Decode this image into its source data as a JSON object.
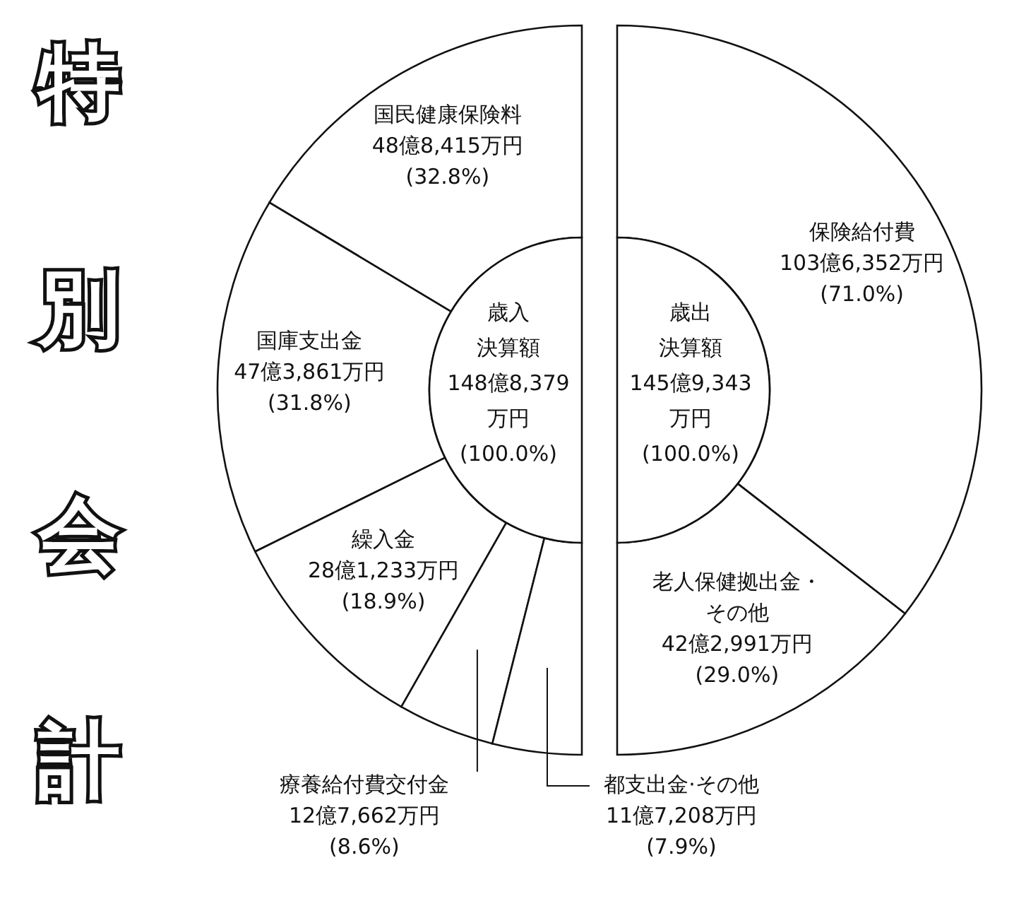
{
  "chart_data": [
    {
      "type": "donut",
      "title": "特別会計",
      "categories": [
        "国民健康保険料",
        "国庫支出金",
        "繰入金",
        "療養給付費交付金",
        "都支出金·その他"
      ],
      "values": [
        32.8,
        31.8,
        18.9,
        8.6,
        7.9
      ],
      "colors": [
        "#ffffff",
        "#ffffff",
        "#ffffff",
        "#ffffff",
        "#ffffff"
      ],
      "value_labels": [
        "48億8,415万円\n(32.8%)",
        "47億3,861万円\n(31.8%)",
        "28億1,233万円\n(18.9%)",
        "12億7,662万円\n(8.6%)",
        "11億7,208万円\n(7.9%)"
      ],
      "annotations": [
        "歳入",
        "決算額",
        "148億8,379",
        "万円",
        "(100.0%)"
      ]
    },
    {
      "type": "donut",
      "categories": [
        "保険給付費",
        "老人保健拠出金・その他"
      ],
      "values": [
        71.0,
        29.0
      ],
      "colors": [
        "#ffffff",
        "#ffffff"
      ],
      "value_labels": [
        "103億6,352万円\n(71.0%)",
        "42億2,991万円\n(29.0%)"
      ],
      "annotations": [
        "歳出",
        "決算額",
        "145億9,343",
        "万円",
        "(100.0%)"
      ]
    }
  ]
}
